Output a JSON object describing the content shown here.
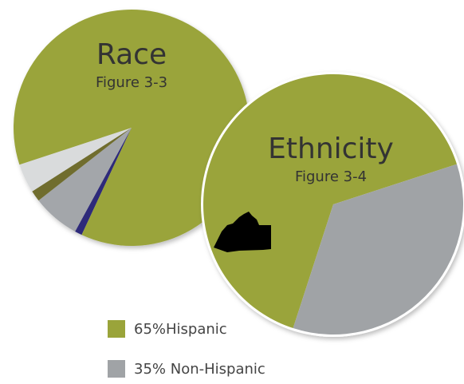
{
  "chart_data": [
    {
      "type": "pie",
      "title": "Race",
      "subtitle": "Figure 3-3",
      "values": [
        1,
        6.5,
        1.5,
        4,
        87
      ],
      "colors": [
        "#2e2a7a",
        "#a3a6aa",
        "#6f6d2e",
        "#d9dbdc",
        "#9aa43a"
      ]
    },
    {
      "type": "pie",
      "title": "Ethnicity",
      "subtitle": "Figure 3-4",
      "categories": [
        "65%Hispanic",
        "35% Non-Hispanic"
      ],
      "values": [
        65,
        35
      ],
      "colors": [
        "#9aa43a",
        "#a0a3a6"
      ],
      "legend": "bottom"
    }
  ]
}
